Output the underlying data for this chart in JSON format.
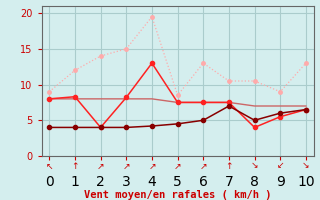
{
  "x": [
    0,
    1,
    2,
    3,
    4,
    5,
    6,
    7,
    8,
    9,
    10
  ],
  "line1": [
    9.0,
    12.0,
    14.0,
    15.0,
    19.5,
    8.5,
    13.0,
    10.5,
    10.5,
    9.0,
    13.0
  ],
  "line2": [
    8.0,
    8.3,
    4.0,
    8.2,
    13.0,
    7.5,
    7.5,
    7.5,
    4.0,
    5.5,
    6.5
  ],
  "line3": [
    4.0,
    4.0,
    4.0,
    4.0,
    4.2,
    4.5,
    5.0,
    7.0,
    5.0,
    6.0,
    6.5
  ],
  "line4": [
    8.0,
    8.0,
    8.0,
    8.0,
    8.0,
    7.5,
    7.5,
    7.5,
    7.0,
    7.0,
    7.0
  ],
  "color1": "#ffaaaa",
  "color2": "#ff2222",
  "color3": "#880000",
  "color4": "#cc6666",
  "bg_color": "#d4eeee",
  "grid_color": "#aacccc",
  "xlabel": "Vent moyen/en rafales ( km/h )",
  "xlabel_color": "#cc0000",
  "tick_color": "#cc0000",
  "ylim": [
    0,
    21
  ],
  "xlim": [
    -0.3,
    10.3
  ],
  "yticks": [
    0,
    5,
    10,
    15,
    20
  ],
  "xticks": [
    0,
    1,
    2,
    3,
    4,
    5,
    6,
    7,
    8,
    9,
    10
  ],
  "arrow_labels": [
    "↖",
    "↑",
    "↗",
    "↗",
    "↗",
    "↗",
    "↗",
    "↑",
    "↘",
    "↙",
    "↘"
  ]
}
